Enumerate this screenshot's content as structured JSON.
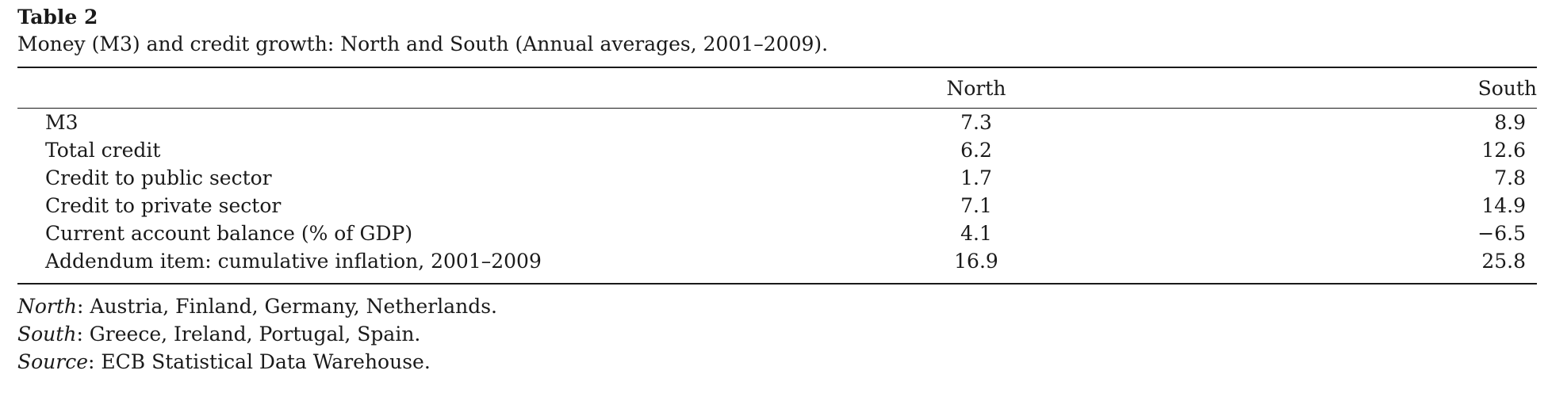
{
  "table": {
    "label": "Table 2",
    "caption": "Money (M3) and credit growth: North and South (Annual averages, 2001–2009).",
    "columns": [
      "North",
      "South"
    ],
    "rows": [
      {
        "label": "M3",
        "north": "7.3",
        "south": "8.9"
      },
      {
        "label": "Total credit",
        "north": "6.2",
        "south": "12.6"
      },
      {
        "label": "Credit to public sector",
        "north": "1.7",
        "south": "7.8"
      },
      {
        "label": "Credit to private sector",
        "north": "7.1",
        "south": "14.9"
      },
      {
        "label": "Current account balance (% of GDP)",
        "north": "4.1",
        "south": "−6.5"
      },
      {
        "label": "Addendum item: cumulative inflation, 2001–2009",
        "north": "16.9",
        "south": "25.8"
      }
    ]
  },
  "notes": [
    {
      "key": "North",
      "text": ": Austria, Finland, Germany, Netherlands."
    },
    {
      "key": "South",
      "text": ": Greece, Ireland, Portugal, Spain."
    },
    {
      "key": "Source",
      "text": ": ECB Statistical Data Warehouse."
    }
  ]
}
